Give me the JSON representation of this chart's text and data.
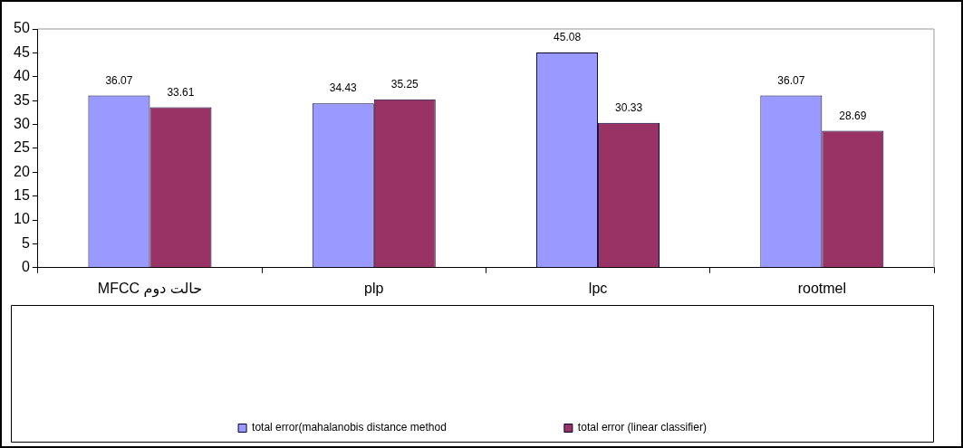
{
  "chart_data": {
    "type": "bar",
    "categories": [
      "MFCC حالت دوم",
      "plp",
      "lpc",
      "rootmel"
    ],
    "series": [
      {
        "name": "total error(mahalanobis distance method",
        "color": "#9999ff",
        "values": [
          36.07,
          34.43,
          45.08,
          36.07
        ]
      },
      {
        "name": "total error (linear classifier)",
        "color": "#993366",
        "values": [
          33.61,
          35.25,
          30.33,
          28.69
        ]
      }
    ],
    "ylim": [
      0,
      50
    ],
    "yticks": [
      0,
      5,
      10,
      15,
      20,
      25,
      30,
      35,
      40,
      45,
      50
    ],
    "grid": false,
    "legend": "bottom",
    "data_labels": true
  }
}
